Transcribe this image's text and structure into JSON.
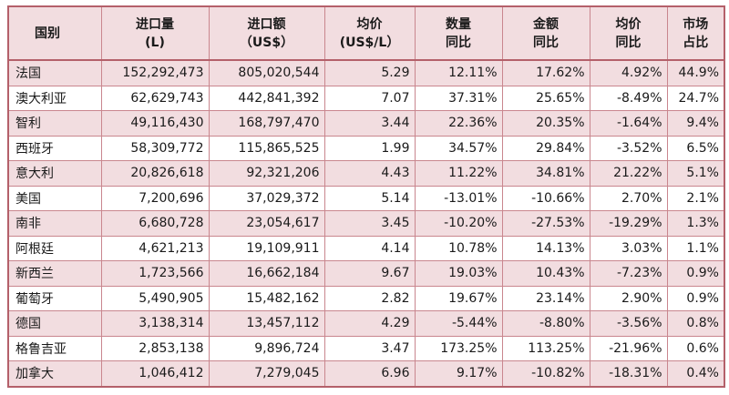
{
  "headers": [
    {
      "line1": "国别",
      "line2": ""
    },
    {
      "line1": "进口量",
      "line2": "(L)"
    },
    {
      "line1": "进口额",
      "line2": "（US$）"
    },
    {
      "line1": "均价",
      "line2": "(US$/L）"
    },
    {
      "line1": "数量",
      "line2": "同比"
    },
    {
      "line1": "金额",
      "line2": "同比"
    },
    {
      "line1": "均价",
      "line2": "同比"
    },
    {
      "line1": "市场",
      "line2": "占比"
    }
  ],
  "rows": [
    [
      "法国",
      "152,292,473",
      "805,020,544",
      "5.29",
      "12.11%",
      "17.62%",
      "4.92%",
      "44.9%"
    ],
    [
      "澳大利亚",
      "62,629,743",
      "442,841,392",
      "7.07",
      "37.31%",
      "25.65%",
      "-8.49%",
      "24.7%"
    ],
    [
      "智利",
      "49,116,430",
      "168,797,470",
      "3.44",
      "22.36%",
      "20.35%",
      "-1.64%",
      "9.4%"
    ],
    [
      "西班牙",
      "58,309,772",
      "115,865,525",
      "1.99",
      "34.57%",
      "29.84%",
      "-3.52%",
      "6.5%"
    ],
    [
      "意大利",
      "20,826,618",
      "92,321,206",
      "4.43",
      "11.22%",
      "34.81%",
      "21.22%",
      "5.1%"
    ],
    [
      "美国",
      "7,200,696",
      "37,029,372",
      "5.14",
      "-13.01%",
      "-10.66%",
      "2.70%",
      "2.1%"
    ],
    [
      "南非",
      "6,680,728",
      "23,054,617",
      "3.45",
      "-10.20%",
      "-27.53%",
      "-19.29%",
      "1.3%"
    ],
    [
      "阿根廷",
      "4,621,213",
      "19,109,911",
      "4.14",
      "10.78%",
      "14.13%",
      "3.03%",
      "1.1%"
    ],
    [
      "新西兰",
      "1,723,566",
      "16,662,184",
      "9.67",
      "19.03%",
      "10.43%",
      "-7.23%",
      "0.9%"
    ],
    [
      "葡萄牙",
      "5,490,905",
      "15,482,162",
      "2.82",
      "19.67%",
      "23.14%",
      "2.90%",
      "0.9%"
    ],
    [
      "德国",
      "3,138,314",
      "13,457,112",
      "4.29",
      "-5.44%",
      "-8.80%",
      "-3.56%",
      "0.8%"
    ],
    [
      "格鲁吉亚",
      "2,853,138",
      "9,896,724",
      "3.47",
      "173.25%",
      "113.25%",
      "-21.96%",
      "0.6%"
    ],
    [
      "加拿大",
      "1,046,412",
      "7,279,045",
      "6.96",
      "9.17%",
      "-10.82%",
      "-18.31%",
      "0.4%"
    ]
  ],
  "colors": {
    "shade": "#f2dde0",
    "border": "#c9868e",
    "outer": "#b4606a"
  }
}
